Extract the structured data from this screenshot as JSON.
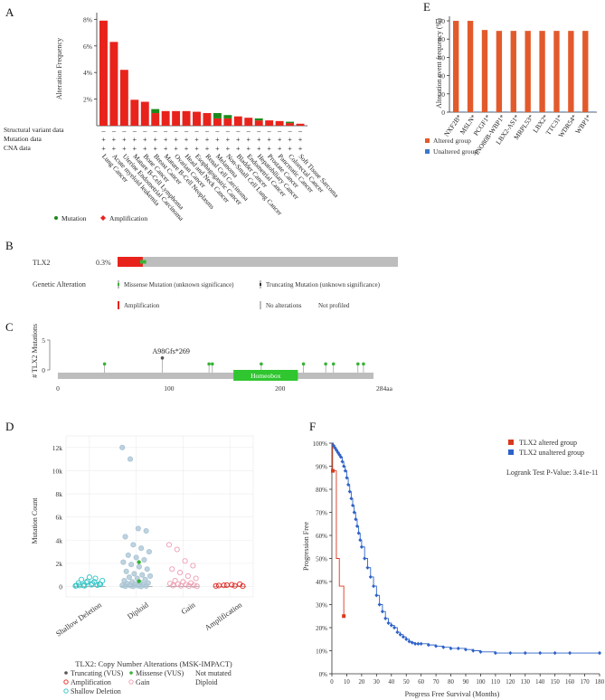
{
  "panel_labels": [
    "A",
    "B",
    "C",
    "D",
    "E",
    "F"
  ],
  "chart_data": [
    {
      "panel": "A",
      "type": "bar",
      "ylabel": "Alteration Frequency",
      "ylim": [
        0,
        8.5
      ],
      "yticks": [
        "2%",
        "4%",
        "6%",
        "8%"
      ],
      "ytick_values": [
        2,
        4,
        6,
        8
      ],
      "categories": [
        "Lung Cancer",
        "Acute myeloid leukemia",
        "Uterine Endometrial Carcinoma",
        "Mature B-Cell Lymphoma",
        "Bone Cancer",
        "Breast Cancer",
        "Mature B-Cell Neoplasms",
        "Ovarian Cancer",
        "Head and Neck Cancer",
        "Esophagogastric Cancer",
        "Renal Cell Carcinoma",
        "Melanoma",
        "Non-Small Cell Lung Cancer",
        "Bladder Cancer",
        "Endometrial Cancer",
        "Hepatobiliary Cancer",
        "Prostate Cancer",
        "Pancreatic Cancer",
        "Colorectal Cancer",
        "Soft Tissue Sarcoma"
      ],
      "series": [
        {
          "name": "Amplification",
          "color": "#e8231c",
          "values": [
            7.9,
            6.3,
            4.2,
            1.95,
            1.8,
            0.95,
            1.1,
            1.1,
            1.1,
            1.05,
            0.95,
            0.55,
            0.55,
            0.7,
            0.6,
            0.4,
            0.4,
            0.35,
            0.2,
            0.15
          ]
        },
        {
          "name": "Mutation",
          "color": "#1a8a1a",
          "values": [
            0,
            0,
            0,
            0,
            0,
            0.3,
            0,
            0,
            0,
            0,
            0,
            0.4,
            0.25,
            0,
            0,
            0.15,
            0,
            0,
            0.1,
            0
          ]
        }
      ],
      "row_labels": [
        "Structural variant data",
        "Mutation data",
        "CNA data"
      ],
      "row_symbols": {
        "sv": [
          "–",
          "–",
          "–",
          "–",
          "–",
          "–",
          "–",
          "–",
          "–",
          "–",
          "–",
          "–",
          "–",
          "–",
          "–",
          "–",
          "–",
          "–",
          "–",
          "–"
        ],
        "mut": [
          "+",
          "+",
          "+",
          "+",
          "+",
          "+",
          "+",
          "+",
          "+",
          "+",
          "+",
          "+",
          "+",
          "+",
          "+",
          "+",
          "+",
          "+",
          "+",
          "+"
        ],
        "cna": [
          "+",
          "+",
          "+",
          "+",
          "+",
          "+",
          "+",
          "+",
          "+",
          "+",
          "+",
          "+",
          "+",
          "+",
          "+",
          "+",
          "+",
          "+",
          "+",
          "+"
        ]
      },
      "legend": [
        {
          "label": "Mutation",
          "color": "#1a8a1a"
        },
        {
          "label": "Amplification",
          "color": "#e8231c"
        }
      ]
    },
    {
      "panel": "B",
      "type": "bar",
      "gene": "TLX2",
      "frequency_label": "0.3%",
      "amplified_fraction": 0.09,
      "mutation_fraction": 0.012,
      "colors": {
        "amp": "#e8231c",
        "mut": "#36b336",
        "none": "#bdbdbd"
      },
      "row_title": "Genetic Alteration",
      "legend": [
        "Missense Mutation (unknown significance)",
        "Truncating Mutation (unknown significance)",
        "Amplification",
        "No alterations",
        "Not profiled"
      ]
    },
    {
      "panel": "C",
      "type": "scatter",
      "ylabel": "# TLX2 Mutations",
      "ylim": [
        0,
        5
      ],
      "yticks": [
        "0",
        "5"
      ],
      "xlim": [
        0,
        284
      ],
      "xticks": [
        "0",
        "100",
        "200"
      ],
      "xtick_values": [
        0,
        100,
        200
      ],
      "length_label": "284aa",
      "domain_name": "Homeobox",
      "domain_range": [
        158,
        216
      ],
      "lollipops": [
        {
          "pos": 42,
          "count": 1,
          "color": "#36b336"
        },
        {
          "pos": 94,
          "count": 2,
          "color": "#555555",
          "label": "A98Gfs*269"
        },
        {
          "pos": 136,
          "count": 1,
          "color": "#36b336"
        },
        {
          "pos": 139,
          "count": 1,
          "color": "#36b336"
        },
        {
          "pos": 183,
          "count": 1,
          "color": "#36b336"
        },
        {
          "pos": 221,
          "count": 1,
          "color": "#36b336"
        },
        {
          "pos": 241,
          "count": 1,
          "color": "#36b336"
        },
        {
          "pos": 248,
          "count": 1,
          "color": "#36b336"
        },
        {
          "pos": 270,
          "count": 1,
          "color": "#36b336"
        },
        {
          "pos": 275,
          "count": 1,
          "color": "#36b336"
        }
      ]
    },
    {
      "panel": "D",
      "type": "scatter",
      "xlabel": "TLX2: Copy Number Alterations (MSK-IMPACT)",
      "ylabel": "Mutation Count",
      "ylim": [
        -900,
        13000
      ],
      "yticks": [
        "0",
        "2k",
        "4k",
        "6k",
        "8k",
        "10k",
        "12k"
      ],
      "ytick_values": [
        0,
        2000,
        4000,
        6000,
        8000,
        10000,
        12000
      ],
      "categories": [
        "Shallow Deletion",
        "Diploid",
        "Gain",
        "Amplification"
      ],
      "groups": [
        {
          "category": "Shallow Deletion",
          "color": "#2ec4c4",
          "values": [
            50,
            100,
            150,
            200,
            300,
            350,
            400,
            500,
            600,
            800,
            120,
            80,
            60,
            250,
            180,
            90,
            450,
            700
          ]
        },
        {
          "category": "Diploid",
          "color": "#a9c4d4",
          "values": [
            12000,
            11000,
            5000,
            4800,
            4300,
            3600,
            3300,
            3000,
            2700,
            2500,
            2300,
            2100,
            1900,
            1700,
            1500,
            1300,
            1100,
            1000,
            900,
            800,
            700,
            600,
            500,
            400,
            350,
            300,
            250,
            200,
            150,
            100,
            80,
            60,
            40,
            20,
            10,
            5
          ]
        },
        {
          "category": "Gain",
          "color": "#ee9bb0",
          "values": [
            3600,
            3200,
            2200,
            1800,
            1500,
            1200,
            900,
            700,
            500,
            400,
            300,
            250,
            200,
            150,
            100,
            80,
            60,
            40,
            20
          ]
        },
        {
          "category": "Amplification",
          "color": "#e8231c",
          "values": [
            50,
            100,
            150,
            200,
            80,
            120,
            60,
            30
          ]
        }
      ],
      "highlights": [
        {
          "category": "Diploid",
          "value": 2100,
          "color": "#36b336"
        },
        {
          "category": "Diploid",
          "value": 450,
          "color": "#36b336"
        }
      ],
      "legend": [
        {
          "label": "Truncating (VUS)",
          "color": "#555555",
          "shape": "dot"
        },
        {
          "label": "Missense (VUS)",
          "color": "#36b336",
          "shape": "dot"
        },
        {
          "label": "Not mutated",
          "color": "#777777",
          "shape": "none"
        },
        {
          "label": "Amplification",
          "color": "#e8231c",
          "shape": "ring"
        },
        {
          "label": "Gain",
          "color": "#ee9bb0",
          "shape": "ring"
        },
        {
          "label": "Diploid",
          "color": "#bbbbbb",
          "shape": "none"
        },
        {
          "label": "Shallow Deletion",
          "color": "#2ec4c4",
          "shape": "ring"
        }
      ]
    },
    {
      "panel": "E",
      "type": "bar",
      "ylabel": "Alteration event frequency (%)",
      "ylim": [
        0,
        105
      ],
      "yticks": [
        "0",
        "20",
        "40",
        "60",
        "80",
        "100"
      ],
      "ytick_values": [
        0,
        20,
        40,
        60,
        80,
        100
      ],
      "categories": [
        "NXF2B*",
        "MSLN*",
        "PCGF1*",
        "INO80B-WBP1*",
        "LBX2-AS1*",
        "MRPL53*",
        "LBX2*",
        "TTC31*",
        "WDR54*",
        "WBP1*"
      ],
      "series": [
        {
          "name": "Altered group",
          "color": "#e25a2c",
          "values": [
            100,
            100,
            90,
            89,
            89,
            89,
            89,
            89,
            89,
            89
          ]
        },
        {
          "name": "Unaltered group",
          "color": "#3b78c6",
          "values": [
            0,
            0,
            0,
            0,
            0,
            0,
            0,
            0,
            0,
            0
          ]
        }
      ]
    },
    {
      "panel": "F",
      "type": "line",
      "xlabel": "Progress Free Survival (Months)",
      "ylabel": "Progression Free",
      "xlim": [
        0,
        180
      ],
      "ylim": [
        0,
        100
      ],
      "xticks": [
        "0",
        "10",
        "20",
        "30",
        "40",
        "50",
        "60",
        "70",
        "80",
        "90",
        "100",
        "110",
        "120",
        "130",
        "140",
        "150",
        "160",
        "170",
        "180"
      ],
      "xtick_values": [
        0,
        10,
        20,
        30,
        40,
        50,
        60,
        70,
        80,
        90,
        100,
        110,
        120,
        130,
        140,
        150,
        160,
        170,
        180
      ],
      "yticks": [
        "0%",
        "10%",
        "20%",
        "30%",
        "40%",
        "50%",
        "60%",
        "70%",
        "80%",
        "90%",
        "100%"
      ],
      "ytick_values": [
        0,
        10,
        20,
        30,
        40,
        50,
        60,
        70,
        80,
        90,
        100
      ],
      "annotation": "Logrank Test P-Value: 3.41e-11",
      "series": [
        {
          "name": "TLX2 altered group",
          "color": "#d9391c",
          "x": [
            0,
            0.5,
            0.5,
            3,
            3,
            5,
            5,
            8
          ],
          "y": [
            100,
            100,
            88,
            88,
            50,
            50,
            38,
            25
          ]
        },
        {
          "name": "TLX2 unaltered group",
          "color": "#2e62c8",
          "x": [
            0,
            1,
            2,
            3,
            4,
            5,
            6,
            7,
            8,
            9,
            10,
            11,
            12,
            13,
            14,
            15,
            16,
            17,
            18,
            19,
            20,
            22,
            24,
            26,
            28,
            30,
            32,
            34,
            36,
            38,
            40,
            42,
            44,
            46,
            48,
            50,
            52,
            54,
            56,
            58,
            60,
            65,
            70,
            75,
            80,
            85,
            90,
            95,
            100,
            110,
            120,
            130,
            140,
            150,
            160,
            180
          ],
          "y": [
            100,
            99,
            98,
            97,
            96,
            95,
            94,
            92,
            90,
            88,
            85,
            82,
            79,
            76,
            73,
            70,
            67,
            64,
            61,
            58,
            55,
            50,
            46,
            42,
            38,
            34,
            30,
            27,
            24,
            22,
            21,
            20,
            18,
            17,
            16,
            15,
            14,
            13.5,
            13,
            13,
            13,
            12.5,
            12,
            11.5,
            11,
            11,
            10.5,
            10,
            9.5,
            9,
            9,
            9,
            9,
            9,
            9,
            9
          ]
        }
      ]
    }
  ]
}
